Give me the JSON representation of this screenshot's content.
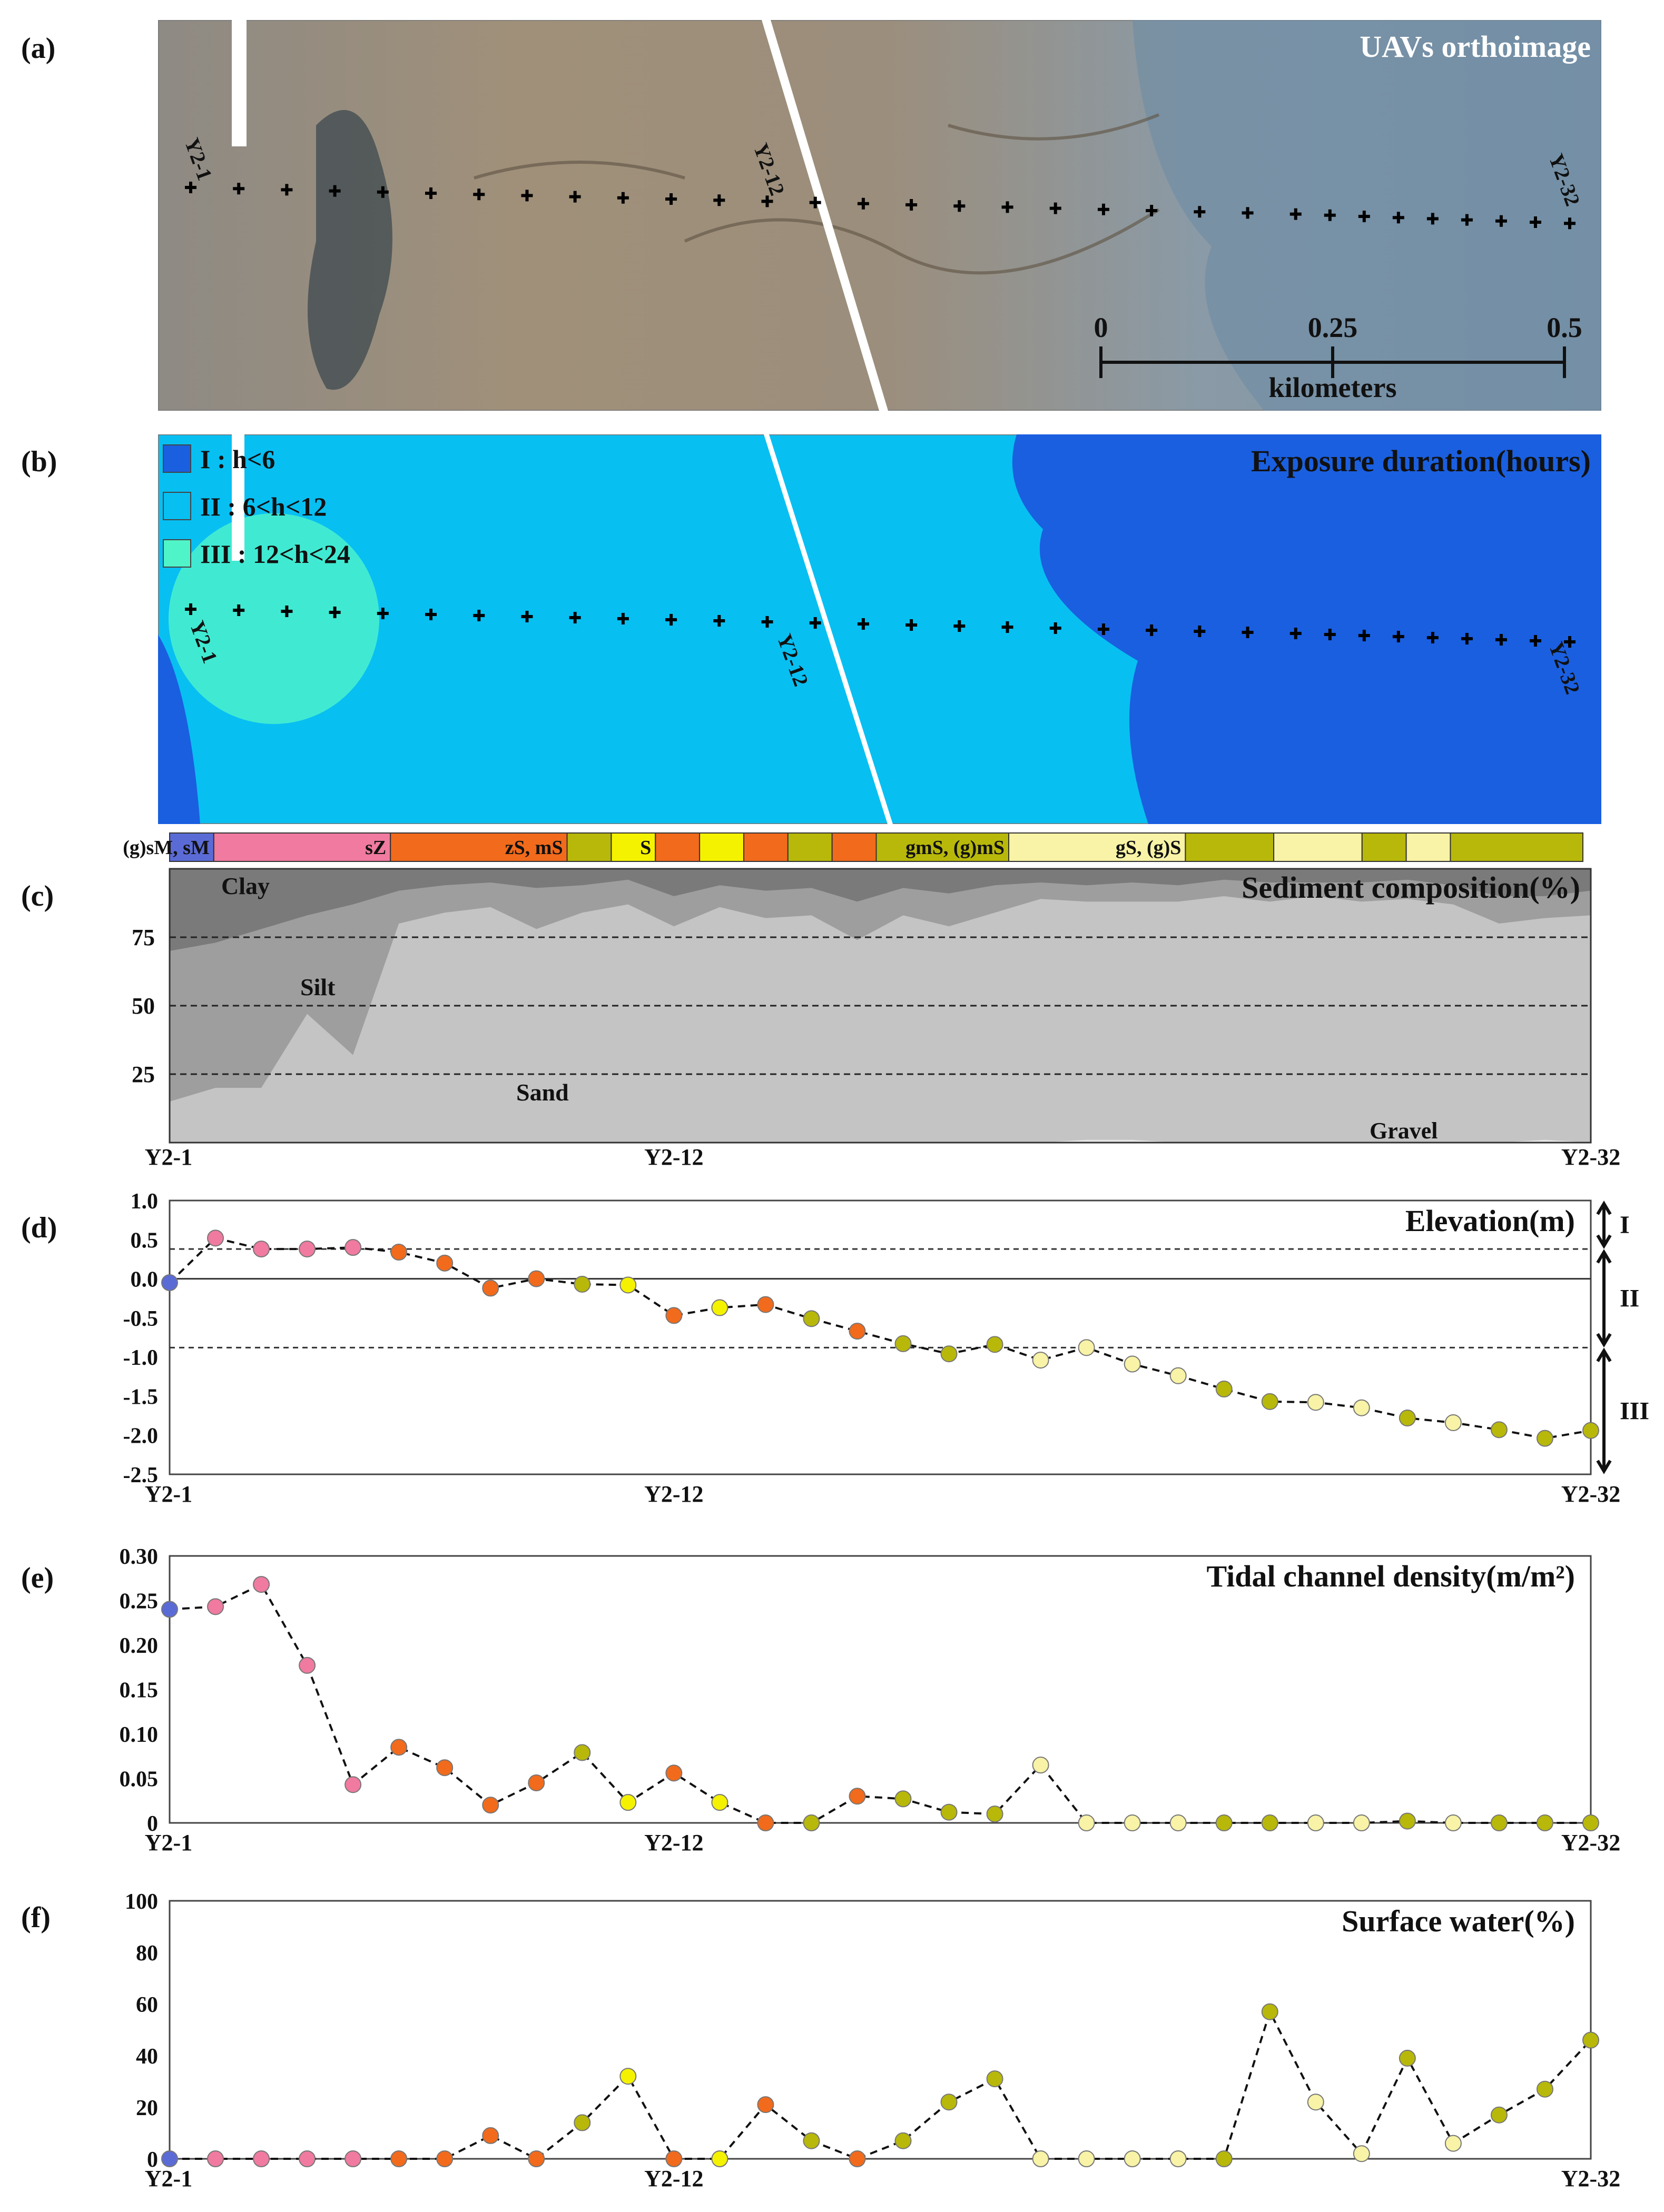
{
  "panel_labels": {
    "a": "(a)",
    "b": "(b)",
    "c": "(c)",
    "d": "(d)",
    "e": "(e)",
    "f": "(f)"
  },
  "colors": {
    "sM": "#5b6bd6",
    "sZ": "#f07aa0",
    "zS": "#f26a1b",
    "S": "#f5f200",
    "gmS": "#b8b80a",
    "gS": "#f8f3a6",
    "exposure_I": "#1a5fe0",
    "exposure_II": "#08bff2",
    "exposure_III": "#4ff5c9",
    "clay": "#7a7a7a",
    "silt": "#9e9e9e",
    "sand": "#c4c4c4",
    "gravel": "#e6e6e6"
  },
  "panel_a": {
    "title": "UAVs orthoimage",
    "profile_labels": {
      "start": "Y2-1",
      "mid": "Y2-12",
      "end": "Y2-32"
    },
    "scale": {
      "ticks": [
        "0",
        "0.25",
        "0.5"
      ],
      "unit": "kilometers"
    }
  },
  "panel_b": {
    "title": "Exposure duration(hours)",
    "legend": [
      {
        "label": "I : h<6",
        "color_key": "exposure_I"
      },
      {
        "label": "II : 6<h<12",
        "color_key": "exposure_II"
      },
      {
        "label": "III : 12<h<24",
        "color_key": "exposure_III"
      }
    ],
    "profile_labels": {
      "start": "Y2-1",
      "mid": "Y2-12",
      "end": "Y2-32"
    }
  },
  "chart_data": [
    {
      "type": "area",
      "panel": "c",
      "title": "Sediment composition(%)",
      "ylim": [
        0,
        100
      ],
      "yticks": [
        25,
        50,
        75
      ],
      "x_labels": {
        "start": "Y2-1",
        "mid": "Y2-12",
        "end": "Y2-32"
      },
      "layer_labels": [
        "Clay",
        "Silt",
        "Sand",
        "Gravel"
      ],
      "series": [
        {
          "name": "Gravel",
          "values": [
            0,
            0,
            0,
            0,
            0,
            0,
            0,
            0,
            0,
            0,
            0,
            0,
            0,
            0,
            0,
            0,
            0,
            0,
            0,
            0,
            1,
            1,
            0,
            0,
            0,
            0,
            0,
            0,
            0,
            0,
            1,
            0
          ]
        },
        {
          "name": "Sand",
          "values": [
            15,
            20,
            20,
            47,
            32,
            80,
            84,
            86,
            78,
            84,
            87,
            79,
            86,
            82,
            83,
            74,
            83,
            79,
            84,
            89,
            88,
            88,
            88,
            90,
            88,
            90,
            88,
            89,
            87,
            80,
            82,
            83
          ]
        },
        {
          "name": "Silt",
          "values": [
            70,
            73,
            78,
            83,
            87,
            92,
            94,
            95,
            93,
            94,
            96,
            90,
            94,
            92,
            93,
            88,
            93,
            91,
            94,
            95,
            94,
            95,
            94,
            96,
            95,
            95,
            95,
            96,
            94,
            90,
            90,
            92
          ]
        },
        {
          "name": "Clay",
          "values": [
            100,
            100,
            100,
            100,
            100,
            100,
            100,
            100,
            100,
            100,
            100,
            100,
            100,
            100,
            100,
            100,
            100,
            100,
            100,
            100,
            100,
            100,
            100,
            100,
            100,
            100,
            100,
            100,
            100,
            100,
            100,
            100
          ]
        }
      ],
      "sediment_bar": [
        {
          "label": "(g)sM, sM",
          "code": "sM",
          "width": 1
        },
        {
          "label": "sZ",
          "code": "sZ",
          "width": 4
        },
        {
          "label": "zS, mS",
          "code": "zS",
          "width": 4
        },
        {
          "label": "",
          "code": "gmS",
          "width": 1
        },
        {
          "label": "S",
          "code": "S",
          "width": 1
        },
        {
          "label": "",
          "code": "zS",
          "width": 1
        },
        {
          "label": "",
          "code": "S",
          "width": 1
        },
        {
          "label": "",
          "code": "zS",
          "width": 1
        },
        {
          "label": "",
          "code": "gmS",
          "width": 1
        },
        {
          "label": "",
          "code": "zS",
          "width": 1
        },
        {
          "label": "gmS, (g)mS",
          "code": "gmS",
          "width": 3
        },
        {
          "label": "gS, (g)S",
          "code": "gS",
          "width": 4
        },
        {
          "label": "",
          "code": "gmS",
          "width": 2
        },
        {
          "label": "",
          "code": "gS",
          "width": 2
        },
        {
          "label": "",
          "code": "gmS",
          "width": 1
        },
        {
          "label": "",
          "code": "gS",
          "width": 1
        },
        {
          "label": "",
          "code": "gmS",
          "width": 3
        }
      ]
    },
    {
      "type": "scatter",
      "panel": "d",
      "title": "Elevation(m)",
      "ylim": [
        -2.5,
        1.0
      ],
      "yticks": [
        "1.0",
        "0.5",
        "0.0",
        "-0.5",
        "-1.0",
        "-1.5",
        "-2.0",
        "-2.5"
      ],
      "ytick_values": [
        1.0,
        0.5,
        0.0,
        -0.5,
        -1.0,
        -1.5,
        -2.0,
        -2.5
      ],
      "hlines": [
        0.38,
        -0.88
      ],
      "zones": [
        "I",
        "II",
        "III"
      ],
      "x_labels": {
        "start": "Y2-1",
        "mid": "Y2-12",
        "end": "Y2-32"
      },
      "values": [
        -0.05,
        0.52,
        0.38,
        0.38,
        0.4,
        0.34,
        0.2,
        -0.12,
        0.0,
        -0.07,
        -0.08,
        -0.47,
        -0.37,
        -0.33,
        -0.51,
        -0.67,
        -0.83,
        -0.96,
        -0.84,
        -1.04,
        -0.88,
        -1.09,
        -1.24,
        -1.41,
        -1.57,
        -1.58,
        -1.65,
        -1.78,
        -1.84,
        -1.93,
        -2.04,
        -1.94
      ],
      "codes": [
        "sM",
        "sZ",
        "sZ",
        "sZ",
        "sZ",
        "zS",
        "zS",
        "zS",
        "zS",
        "gmS",
        "S",
        "zS",
        "S",
        "zS",
        "gmS",
        "zS",
        "gmS",
        "gmS",
        "gmS",
        "gS",
        "gS",
        "gS",
        "gS",
        "gmS",
        "gmS",
        "gS",
        "gS",
        "gmS",
        "gS",
        "gmS",
        "gmS",
        "gmS"
      ]
    },
    {
      "type": "scatter",
      "panel": "e",
      "title": "Tidal channel density(m/m²)",
      "ylim": [
        0,
        0.3
      ],
      "yticks": [
        "0.30",
        "0.25",
        "0.20",
        "0.15",
        "0.10",
        "0.05",
        "0"
      ],
      "ytick_values": [
        0.3,
        0.25,
        0.2,
        0.15,
        0.1,
        0.05,
        0
      ],
      "x_labels": {
        "start": "Y2-1",
        "mid": "Y2-12",
        "end": "Y2-32"
      },
      "values": [
        0.24,
        0.243,
        0.268,
        0.177,
        0.043,
        0.085,
        0.062,
        0.02,
        0.045,
        0.079,
        0.023,
        0.056,
        0.023,
        0.0,
        0.0,
        0.03,
        0.027,
        0.012,
        0.01,
        0.065,
        0.0,
        0.0,
        0.0,
        0.0,
        0.0,
        0.0,
        0.0,
        0.002,
        0.0,
        0.0,
        0.0,
        0.0
      ],
      "codes": [
        "sM",
        "sZ",
        "sZ",
        "sZ",
        "sZ",
        "zS",
        "zS",
        "zS",
        "zS",
        "gmS",
        "S",
        "zS",
        "S",
        "zS",
        "gmS",
        "zS",
        "gmS",
        "gmS",
        "gmS",
        "gS",
        "gS",
        "gS",
        "gS",
        "gmS",
        "gmS",
        "gS",
        "gS",
        "gmS",
        "gS",
        "gmS",
        "gmS",
        "gmS"
      ]
    },
    {
      "type": "scatter",
      "panel": "f",
      "title": "Surface water(%)",
      "ylim": [
        0,
        100
      ],
      "yticks": [
        "100",
        "80",
        "60",
        "40",
        "20",
        "0"
      ],
      "ytick_values": [
        100,
        80,
        60,
        40,
        20,
        0
      ],
      "x_labels": {
        "start": "Y2-1",
        "mid": "Y2-12",
        "end": "Y2-32"
      },
      "values": [
        0,
        0,
        0,
        0,
        0,
        0,
        0,
        9,
        0,
        14,
        32,
        0,
        0,
        21,
        7,
        0,
        7,
        22,
        31,
        0,
        0,
        0,
        0,
        0,
        57,
        22,
        2,
        39,
        6,
        17,
        27,
        46
      ],
      "codes": [
        "sM",
        "sZ",
        "sZ",
        "sZ",
        "sZ",
        "zS",
        "zS",
        "zS",
        "zS",
        "gmS",
        "S",
        "zS",
        "S",
        "zS",
        "gmS",
        "zS",
        "gmS",
        "gmS",
        "gmS",
        "gS",
        "gS",
        "gS",
        "gS",
        "gmS",
        "gmS",
        "gS",
        "gS",
        "gmS",
        "gS",
        "gmS",
        "gmS",
        "gmS"
      ]
    }
  ]
}
